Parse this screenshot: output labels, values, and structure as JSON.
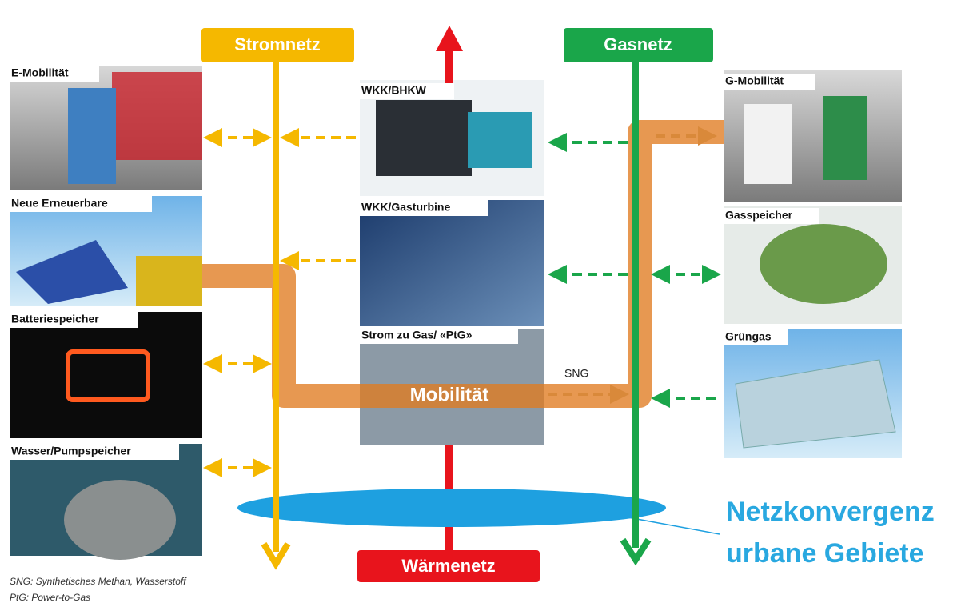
{
  "networks": {
    "power": "Stromnetz",
    "gas": "Gasnetz",
    "heat": "Wärmenetz"
  },
  "left_nodes": [
    "E-Mobilität",
    "Neue Erneuerbare",
    "Batteriespeicher",
    "Wasser/Pumpspeicher"
  ],
  "center_nodes": [
    "WKK/BHKW",
    "WKK/Gasturbine",
    "Strom zu Gas/ «PtG»"
  ],
  "right_nodes": [
    "G-Mobilität",
    "Gasspeicher",
    "Grüngas"
  ],
  "flow_labels": {
    "sng": "SNG",
    "mobility": "Mobilität"
  },
  "headline": [
    "Netzkonvergenz",
    "urbane Gebiete"
  ],
  "footnotes": [
    "SNG: Synthetisches Methan, Wasserstoff",
    "PtG: Power-to-Gas"
  ]
}
